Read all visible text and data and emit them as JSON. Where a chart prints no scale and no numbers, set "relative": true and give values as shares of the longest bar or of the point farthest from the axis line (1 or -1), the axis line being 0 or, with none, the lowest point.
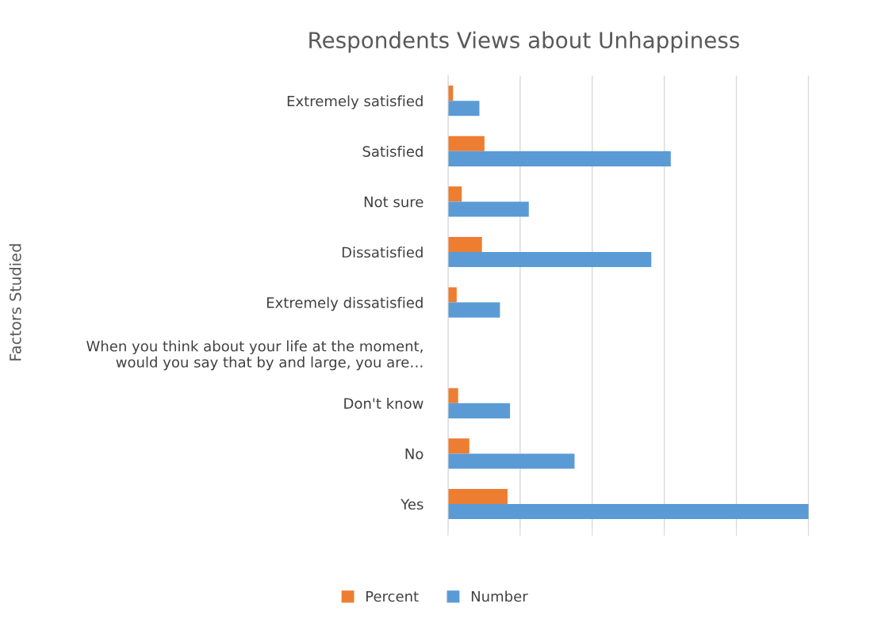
{
  "chart_data": {
    "type": "bar",
    "orientation": "horizontal",
    "relative": true,
    "title": "Respondents Views about Unhappiness",
    "ylabel": "Factors Studied",
    "categories": [
      "Extremely satisfied",
      "Satisfied",
      "Not sure",
      "Dissatisfied",
      "Extremely dissatisfied",
      "When you think about your life at the moment,\nwould you say that by and large, you are…",
      "Don't know",
      "No",
      "Yes"
    ],
    "series": [
      {
        "name": "Percent",
        "color": "#ed7d31",
        "values": [
          0.014,
          0.101,
          0.038,
          0.094,
          0.024,
          null,
          0.028,
          0.059,
          0.165
        ]
      },
      {
        "name": "Number",
        "color": "#5b9bd5",
        "values": [
          0.087,
          0.618,
          0.224,
          0.564,
          0.144,
          null,
          0.172,
          0.351,
          1
        ]
      }
    ],
    "grid": "x",
    "legend": "bottom"
  }
}
